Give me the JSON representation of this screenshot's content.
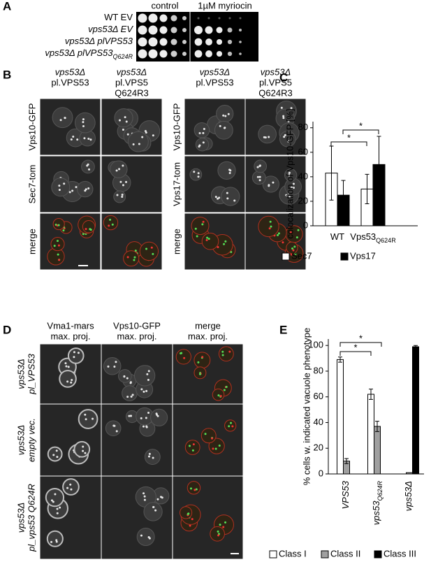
{
  "panel_a": {
    "label": "A",
    "headers": [
      "control",
      "1µM myriocin"
    ],
    "rows": [
      {
        "text": "WT EV"
      },
      {
        "text": "vps53Δ EV"
      },
      {
        "text": "vps53Δ plVPS53"
      },
      {
        "text": "vps53Δ plVPS53",
        "sub": "Q624R"
      }
    ]
  },
  "panel_b": {
    "label": "B",
    "groups": [
      {
        "columns": [
          [
            "vps53Δ",
            "pl.VPS53"
          ],
          [
            "vps53Δ",
            "pl.VPS5",
            "Q624R3"
          ]
        ],
        "rows": [
          "Vps10-GFP",
          "Sec7-tom",
          "merge"
        ]
      },
      {
        "columns": [
          [
            "vps53Δ",
            "pl.VPS53"
          ],
          [
            "vps53Δ",
            "pl.VPS5",
            "Q624R3"
          ]
        ],
        "rows": [
          "Vps10-GFP",
          "Vps17-tom",
          "merge"
        ]
      }
    ]
  },
  "panel_d": {
    "label": "D",
    "columns": [
      [
        "Vma1-mars",
        "max. proj."
      ],
      [
        "Vps10-GFP",
        "max. proj."
      ],
      [
        "merge",
        "max. proj."
      ]
    ],
    "rows": [
      [
        "vps53Δ",
        "pl_VPS53"
      ],
      [
        "vps53Δ",
        "empty vec."
      ],
      [
        "vps53Δ",
        "pl_vps53 Q624R"
      ]
    ]
  },
  "chart_data": [
    {
      "type": "bar",
      "panel_label": "C",
      "ylabel": "colocalization of Vps10-GFP [%]",
      "categories": [
        "WT",
        "Vps53"
      ],
      "category_subscripts": [
        null,
        "Q624R"
      ],
      "series": [
        {
          "name": "Sec7",
          "color": "#ffffff",
          "values": [
            43,
            30
          ],
          "errors": [
            22,
            12
          ]
        },
        {
          "name": "Vps17",
          "color": "#000000",
          "values": [
            25,
            50
          ],
          "errors": [
            12,
            23
          ]
        }
      ],
      "ylim": [
        0,
        85
      ],
      "yticks": [
        0,
        20,
        40,
        60,
        80
      ],
      "significance": [
        "*",
        "*"
      ]
    },
    {
      "type": "bar",
      "panel_label": "E",
      "ylabel": "% cells w. indicated vacuole phenotype",
      "categories": [
        "VPS53",
        "vps53",
        "vps53Δ"
      ],
      "category_subscripts": [
        null,
        "Q624R",
        null
      ],
      "series": [
        {
          "name": "Class I",
          "color": "#ffffff",
          "values": [
            89,
            62,
            0
          ],
          "errors": [
            2,
            4,
            null
          ]
        },
        {
          "name": "Class II",
          "color": "#a0a0a0",
          "values": [
            10,
            37,
            1
          ],
          "errors": [
            2,
            4,
            null
          ]
        },
        {
          "name": "Class III",
          "color": "#000000",
          "values": [
            0,
            0,
            99
          ],
          "errors": [
            null,
            null,
            1
          ]
        }
      ],
      "ylim": [
        0,
        105
      ],
      "yticks": [
        0,
        20,
        40,
        60,
        80,
        100
      ],
      "significance": [
        "*",
        "*"
      ]
    }
  ]
}
